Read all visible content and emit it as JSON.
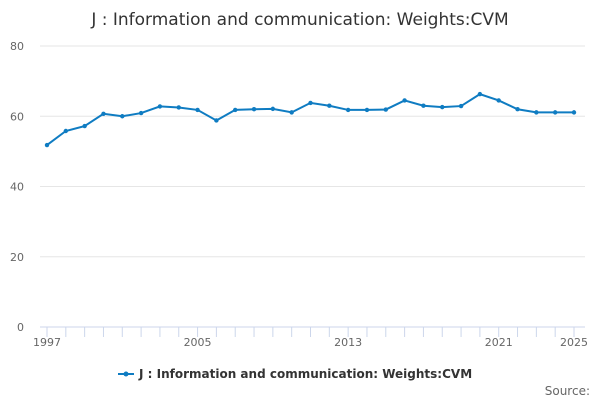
{
  "chart_data": {
    "type": "line",
    "title": "J : Information and communication: Weights:CVM",
    "xlabel": "",
    "ylabel": "",
    "ylim": [
      0,
      80
    ],
    "xlim": [
      1997,
      2025
    ],
    "yticks": [
      0,
      20,
      40,
      60,
      80
    ],
    "xticks": [
      1997,
      2005,
      2013,
      2021,
      2025
    ],
    "grid": true,
    "legend_position": "bottom",
    "x": [
      1997,
      1998,
      1999,
      2000,
      2001,
      2002,
      2003,
      2004,
      2005,
      2006,
      2007,
      2008,
      2009,
      2010,
      2011,
      2012,
      2013,
      2014,
      2015,
      2016,
      2017,
      2018,
      2019,
      2020,
      2021,
      2022,
      2023,
      2024,
      2025
    ],
    "series": [
      {
        "name": "J : Information and communication: Weights:CVM",
        "color": "#0f7cc2",
        "values": [
          51.8,
          55.8,
          57.2,
          60.7,
          60.0,
          60.9,
          62.8,
          62.5,
          61.8,
          58.8,
          61.8,
          62.0,
          62.1,
          61.1,
          63.8,
          63.0,
          61.8,
          61.8,
          61.9,
          64.5,
          63.0,
          62.6,
          62.9,
          66.3,
          64.5,
          62.0,
          61.1,
          61.1,
          61.1
        ]
      }
    ],
    "source_label": "Source:"
  }
}
